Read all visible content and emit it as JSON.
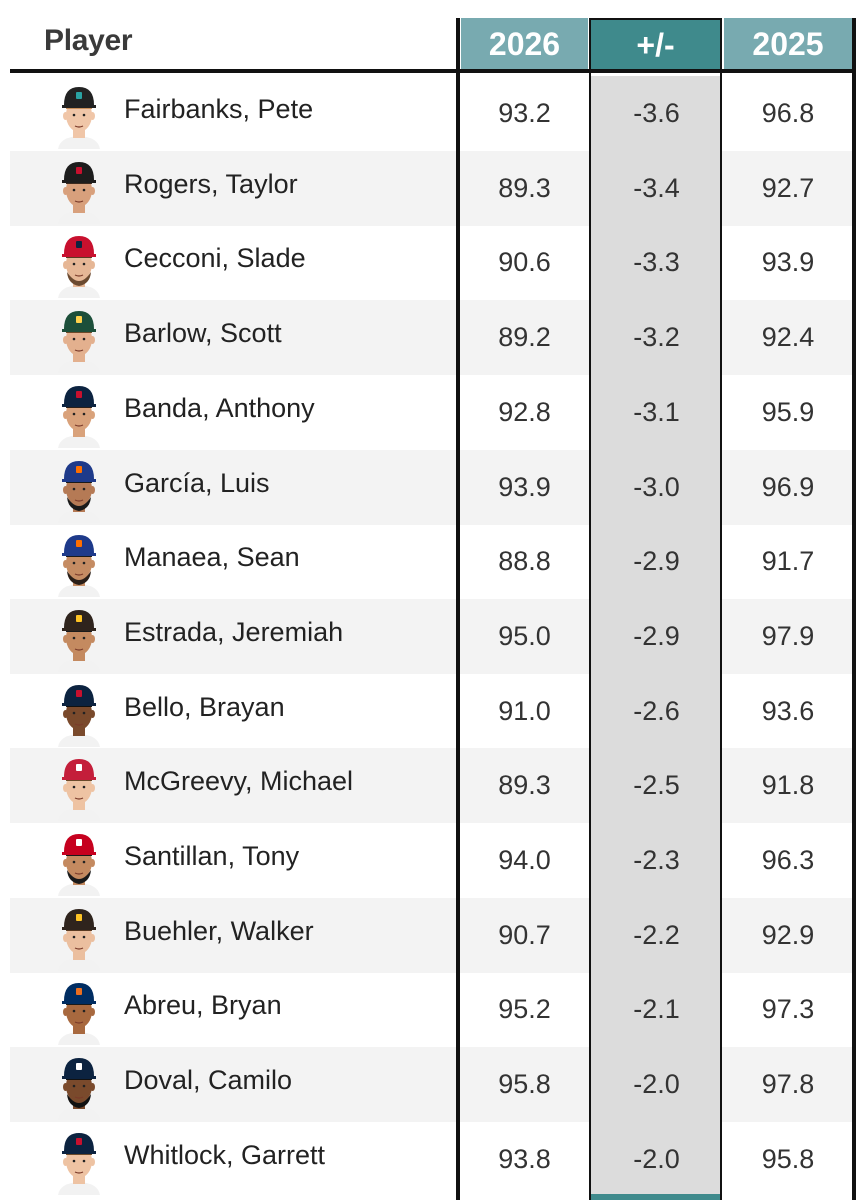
{
  "header": {
    "player_label": "Player",
    "col_2026": "2026",
    "col_diff": "+/-",
    "col_2025": "2025"
  },
  "colors": {
    "header_light": "#78aab0",
    "header_dark": "#3f8a8c",
    "diff_column_bg": "#dcdcdc",
    "row_alt_bg": "#f3f3f3"
  },
  "rows": [
    {
      "name": "Fairbanks, Pete",
      "v2026": "93.2",
      "diff": "-3.6",
      "v2025": "96.8",
      "cap": "#222222",
      "logo": "#2aa3a3",
      "skin": "#f0c6a8",
      "hair": "#c98f5a",
      "beard": ""
    },
    {
      "name": "Rogers, Taylor",
      "v2026": "89.3",
      "diff": "-3.4",
      "v2025": "92.7",
      "cap": "#1d1d1d",
      "logo": "#c8102e",
      "skin": "#d8a07c",
      "hair": "#3b2a1f",
      "beard": ""
    },
    {
      "name": "Cecconi, Slade",
      "v2026": "90.6",
      "diff": "-3.3",
      "v2025": "93.9",
      "cap": "#c8102e",
      "logo": "#0c2340",
      "skin": "#e6b796",
      "hair": "#5a3a22",
      "beard": "#6b4a30"
    },
    {
      "name": "Barlow, Scott",
      "v2026": "89.2",
      "diff": "-3.2",
      "v2025": "92.4",
      "cap": "#1c4f3a",
      "logo": "#ffd24d",
      "skin": "#e3b08e",
      "hair": "#6b4a2a",
      "beard": ""
    },
    {
      "name": "Banda, Anthony",
      "v2026": "92.8",
      "diff": "-3.1",
      "v2025": "95.9",
      "cap": "#0c2340",
      "logo": "#c8102e",
      "skin": "#d9a27b",
      "hair": "#2a1f18",
      "beard": ""
    },
    {
      "name": "García, Luis",
      "v2026": "93.9",
      "diff": "-3.0",
      "v2025": "96.9",
      "cap": "#1e3a8a",
      "logo": "#ff6f00",
      "skin": "#b57a55",
      "hair": "#1a1a1a",
      "beard": "#1a1a1a"
    },
    {
      "name": "Manaea, Sean",
      "v2026": "88.8",
      "diff": "-2.9",
      "v2025": "91.7",
      "cap": "#1e3a8a",
      "logo": "#ff6f00",
      "skin": "#c58c63",
      "hair": "#1a1a1a",
      "beard": "#2a1f18"
    },
    {
      "name": "Estrada, Jeremiah",
      "v2026": "95.0",
      "diff": "-2.9",
      "v2025": "97.9",
      "cap": "#2f241d",
      "logo": "#ffc425",
      "skin": "#c48a60",
      "hair": "#1a1a1a",
      "beard": ""
    },
    {
      "name": "Bello, Brayan",
      "v2026": "91.0",
      "diff": "-2.6",
      "v2025": "93.6",
      "cap": "#0c2340",
      "logo": "#c8102e",
      "skin": "#7a4a2c",
      "hair": "#111111",
      "beard": ""
    },
    {
      "name": "McGreevy, Michael",
      "v2026": "89.3",
      "diff": "-2.5",
      "v2025": "91.8",
      "cap": "#c41e3a",
      "logo": "#ffffff",
      "skin": "#eec3a3",
      "hair": "#6b4a2a",
      "beard": ""
    },
    {
      "name": "Santillan, Tony",
      "v2026": "94.0",
      "diff": "-2.3",
      "v2025": "96.3",
      "cap": "#c6011f",
      "logo": "#ffffff",
      "skin": "#c48a60",
      "hair": "#1a1a1a",
      "beard": "#1a1a1a"
    },
    {
      "name": "Buehler, Walker",
      "v2026": "90.7",
      "diff": "-2.2",
      "v2025": "92.9",
      "cap": "#2f241d",
      "logo": "#ffc425",
      "skin": "#ebbf9f",
      "hair": "#5a3a22",
      "beard": ""
    },
    {
      "name": "Abreu, Bryan",
      "v2026": "95.2",
      "diff": "-2.1",
      "v2025": "97.3",
      "cap": "#002d62",
      "logo": "#eb6e1f",
      "skin": "#a8693f",
      "hair": "#1a1a1a",
      "beard": ""
    },
    {
      "name": "Doval, Camilo",
      "v2026": "95.8",
      "diff": "-2.0",
      "v2025": "97.8",
      "cap": "#0c2340",
      "logo": "#ffffff",
      "skin": "#7a4a2c",
      "hair": "#111111",
      "beard": "#111111"
    },
    {
      "name": "Whitlock, Garrett",
      "v2026": "93.8",
      "diff": "-2.0",
      "v2025": "95.8",
      "cap": "#0c2340",
      "logo": "#c8102e",
      "skin": "#eec3a3",
      "hair": "#6b4a2a",
      "beard": ""
    }
  ]
}
